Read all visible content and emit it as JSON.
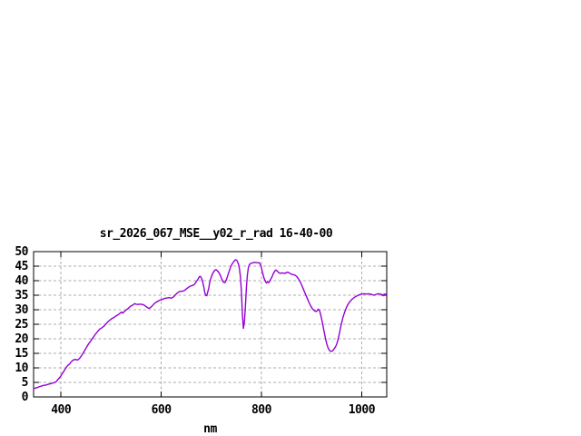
{
  "chart_data": {
    "type": "line",
    "title": "sr_2026_067_MSE__y02_r_rad 16-40-00",
    "xlabel": "nm",
    "ylabel": "",
    "xlim": [
      345.3,
      1050
    ],
    "ylim": [
      0,
      50
    ],
    "xticks": [
      400,
      600,
      800,
      1000
    ],
    "yticks": [
      0,
      5,
      10,
      15,
      20,
      25,
      30,
      35,
      40,
      45,
      50
    ],
    "grid": true,
    "legend": "none",
    "line_color": "#9400d3",
    "grid_color": "#ababab",
    "border_color": "#000000",
    "background_color": "#ffffff",
    "series": [
      {
        "name": "sr_2026_067_MSE__y02_r_rad",
        "points": [
          [
            346,
            2.9
          ],
          [
            350,
            3.1
          ],
          [
            354,
            3.3
          ],
          [
            358,
            3.6
          ],
          [
            362,
            3.8
          ],
          [
            366,
            4.0
          ],
          [
            370,
            4.1
          ],
          [
            374,
            4.3
          ],
          [
            378,
            4.5
          ],
          [
            382,
            4.7
          ],
          [
            386,
            4.9
          ],
          [
            390,
            5.2
          ],
          [
            393,
            5.8
          ],
          [
            396,
            6.4
          ],
          [
            399,
            7.0
          ],
          [
            402,
            7.9
          ],
          [
            405,
            8.7
          ],
          [
            408,
            9.5
          ],
          [
            411,
            10.3
          ],
          [
            414,
            10.9
          ],
          [
            417,
            11.3
          ],
          [
            420,
            12.0
          ],
          [
            423,
            12.5
          ],
          [
            426,
            12.8
          ],
          [
            429,
            12.9
          ],
          [
            432,
            12.7
          ],
          [
            435,
            12.9
          ],
          [
            438,
            13.5
          ],
          [
            441,
            14.2
          ],
          [
            444,
            15.0
          ],
          [
            447,
            15.9
          ],
          [
            450,
            16.8
          ],
          [
            453,
            17.7
          ],
          [
            456,
            18.5
          ],
          [
            459,
            19.2
          ],
          [
            462,
            19.9
          ],
          [
            465,
            20.7
          ],
          [
            468,
            21.4
          ],
          [
            471,
            22.1
          ],
          [
            474,
            22.7
          ],
          [
            477,
            23.3
          ],
          [
            480,
            23.6
          ],
          [
            483,
            24.0
          ],
          [
            486,
            24.4
          ],
          [
            489,
            25.0
          ],
          [
            492,
            25.6
          ],
          [
            495,
            26.1
          ],
          [
            498,
            26.5
          ],
          [
            501,
            26.9
          ],
          [
            504,
            27.2
          ],
          [
            507,
            27.5
          ],
          [
            510,
            27.9
          ],
          [
            513,
            28.2
          ],
          [
            516,
            28.5
          ],
          [
            519,
            29.0
          ],
          [
            521,
            29.2
          ],
          [
            523,
            28.8
          ],
          [
            526,
            29.3
          ],
          [
            529,
            29.8
          ],
          [
            532,
            30.2
          ],
          [
            535,
            30.6
          ],
          [
            538,
            31.1
          ],
          [
            541,
            31.4
          ],
          [
            544,
            31.7
          ],
          [
            547,
            32.1
          ],
          [
            550,
            31.9
          ],
          [
            553,
            31.8
          ],
          [
            556,
            31.9
          ],
          [
            559,
            31.9
          ],
          [
            562,
            31.8
          ],
          [
            565,
            31.7
          ],
          [
            568,
            31.3
          ],
          [
            571,
            30.9
          ],
          [
            574,
            30.6
          ],
          [
            577,
            30.5
          ],
          [
            580,
            31.0
          ],
          [
            583,
            31.5
          ],
          [
            586,
            32.1
          ],
          [
            589,
            32.5
          ],
          [
            592,
            32.8
          ],
          [
            595,
            33.1
          ],
          [
            598,
            33.3
          ],
          [
            601,
            33.5
          ],
          [
            604,
            33.7
          ],
          [
            607,
            33.9
          ],
          [
            610,
            34.0
          ],
          [
            613,
            34.1
          ],
          [
            616,
            34.2
          ],
          [
            619,
            34.0
          ],
          [
            622,
            34.1
          ],
          [
            625,
            34.5
          ],
          [
            628,
            35.1
          ],
          [
            631,
            35.6
          ],
          [
            634,
            36.0
          ],
          [
            637,
            36.3
          ],
          [
            640,
            36.3
          ],
          [
            643,
            36.4
          ],
          [
            646,
            36.6
          ],
          [
            649,
            37.0
          ],
          [
            652,
            37.4
          ],
          [
            655,
            37.8
          ],
          [
            658,
            38.1
          ],
          [
            661,
            38.3
          ],
          [
            664,
            38.4
          ],
          [
            667,
            38.9
          ],
          [
            670,
            39.7
          ],
          [
            673,
            40.4
          ],
          [
            676,
            41.3
          ],
          [
            678,
            41.5
          ],
          [
            680,
            40.9
          ],
          [
            682,
            40.1
          ],
          [
            685,
            37.8
          ],
          [
            687,
            35.9
          ],
          [
            689,
            34.9
          ],
          [
            691,
            34.8
          ],
          [
            693,
            36.2
          ],
          [
            695,
            37.5
          ],
          [
            697,
            39.6
          ],
          [
            700,
            41.3
          ],
          [
            703,
            42.6
          ],
          [
            706,
            43.4
          ],
          [
            709,
            43.8
          ],
          [
            712,
            43.4
          ],
          [
            715,
            42.8
          ],
          [
            718,
            41.8
          ],
          [
            721,
            40.5
          ],
          [
            724,
            39.5
          ],
          [
            727,
            39.3
          ],
          [
            730,
            40.3
          ],
          [
            733,
            41.9
          ],
          [
            736,
            43.5
          ],
          [
            739,
            44.9
          ],
          [
            742,
            45.9
          ],
          [
            745,
            46.6
          ],
          [
            748,
            47.2
          ],
          [
            751,
            47.0
          ],
          [
            754,
            45.8
          ],
          [
            756,
            44.2
          ],
          [
            758,
            41.5
          ],
          [
            760,
            36.5
          ],
          [
            762,
            28.5
          ],
          [
            764,
            23.6
          ],
          [
            766,
            25.8
          ],
          [
            768,
            31.0
          ],
          [
            770,
            37.5
          ],
          [
            772,
            42.0
          ],
          [
            774,
            44.5
          ],
          [
            776,
            45.5
          ],
          [
            778,
            45.9
          ],
          [
            781,
            46.1
          ],
          [
            784,
            46.2
          ],
          [
            787,
            46.3
          ],
          [
            790,
            46.2
          ],
          [
            793,
            46.2
          ],
          [
            796,
            46.1
          ],
          [
            799,
            45.2
          ],
          [
            802,
            42.9
          ],
          [
            805,
            40.9
          ],
          [
            808,
            39.7
          ],
          [
            810,
            39.2
          ],
          [
            812,
            39.7
          ],
          [
            814,
            39.3
          ],
          [
            816,
            39.6
          ],
          [
            818,
            40.3
          ],
          [
            821,
            41.3
          ],
          [
            824,
            42.5
          ],
          [
            827,
            43.4
          ],
          [
            829,
            43.7
          ],
          [
            832,
            43.2
          ],
          [
            835,
            42.7
          ],
          [
            838,
            42.5
          ],
          [
            841,
            42.7
          ],
          [
            844,
            42.6
          ],
          [
            847,
            42.5
          ],
          [
            850,
            42.8
          ],
          [
            853,
            42.9
          ],
          [
            856,
            42.6
          ],
          [
            859,
            42.3
          ],
          [
            862,
            42.1
          ],
          [
            865,
            42.0
          ],
          [
            868,
            41.8
          ],
          [
            871,
            41.3
          ],
          [
            874,
            40.6
          ],
          [
            877,
            39.7
          ],
          [
            880,
            38.6
          ],
          [
            883,
            37.4
          ],
          [
            886,
            36.1
          ],
          [
            889,
            34.9
          ],
          [
            892,
            33.7
          ],
          [
            895,
            32.5
          ],
          [
            898,
            31.4
          ],
          [
            901,
            30.5
          ],
          [
            904,
            29.9
          ],
          [
            907,
            29.5
          ],
          [
            909,
            29.4
          ],
          [
            911,
            29.6
          ],
          [
            913,
            30.2
          ],
          [
            915,
            30.0
          ],
          [
            917,
            29.1
          ],
          [
            919,
            27.7
          ],
          [
            921,
            26.1
          ],
          [
            923,
            24.3
          ],
          [
            925,
            22.5
          ],
          [
            927,
            20.8
          ],
          [
            929,
            19.2
          ],
          [
            931,
            17.9
          ],
          [
            933,
            16.9
          ],
          [
            935,
            16.2
          ],
          [
            937,
            15.8
          ],
          [
            940,
            15.7
          ],
          [
            942,
            15.9
          ],
          [
            944,
            16.3
          ],
          [
            946,
            16.8
          ],
          [
            948,
            17.3
          ],
          [
            950,
            18.1
          ],
          [
            952,
            19.2
          ],
          [
            954,
            20.6
          ],
          [
            956,
            22.2
          ],
          [
            958,
            23.9
          ],
          [
            960,
            25.5
          ],
          [
            962,
            26.9
          ],
          [
            964,
            28.1
          ],
          [
            966,
            29.1
          ],
          [
            968,
            30.0
          ],
          [
            970,
            30.9
          ],
          [
            972,
            31.6
          ],
          [
            974,
            32.2
          ],
          [
            976,
            32.7
          ],
          [
            978,
            33.1
          ],
          [
            980,
            33.5
          ],
          [
            983,
            33.9
          ],
          [
            986,
            34.3
          ],
          [
            989,
            34.6
          ],
          [
            992,
            34.9
          ],
          [
            995,
            35.1
          ],
          [
            998,
            35.3
          ],
          [
            1001,
            35.4
          ],
          [
            1005,
            35.5
          ],
          [
            1009,
            35.4
          ],
          [
            1013,
            35.5
          ],
          [
            1017,
            35.4
          ],
          [
            1021,
            35.2
          ],
          [
            1025,
            35.0
          ],
          [
            1029,
            35.3
          ],
          [
            1033,
            35.5
          ],
          [
            1037,
            35.4
          ],
          [
            1041,
            35.2
          ],
          [
            1043,
            34.8
          ],
          [
            1045,
            35.4
          ],
          [
            1046,
            34.9
          ],
          [
            1048,
            35.4
          ],
          [
            1049.5,
            35.3
          ]
        ]
      }
    ]
  }
}
